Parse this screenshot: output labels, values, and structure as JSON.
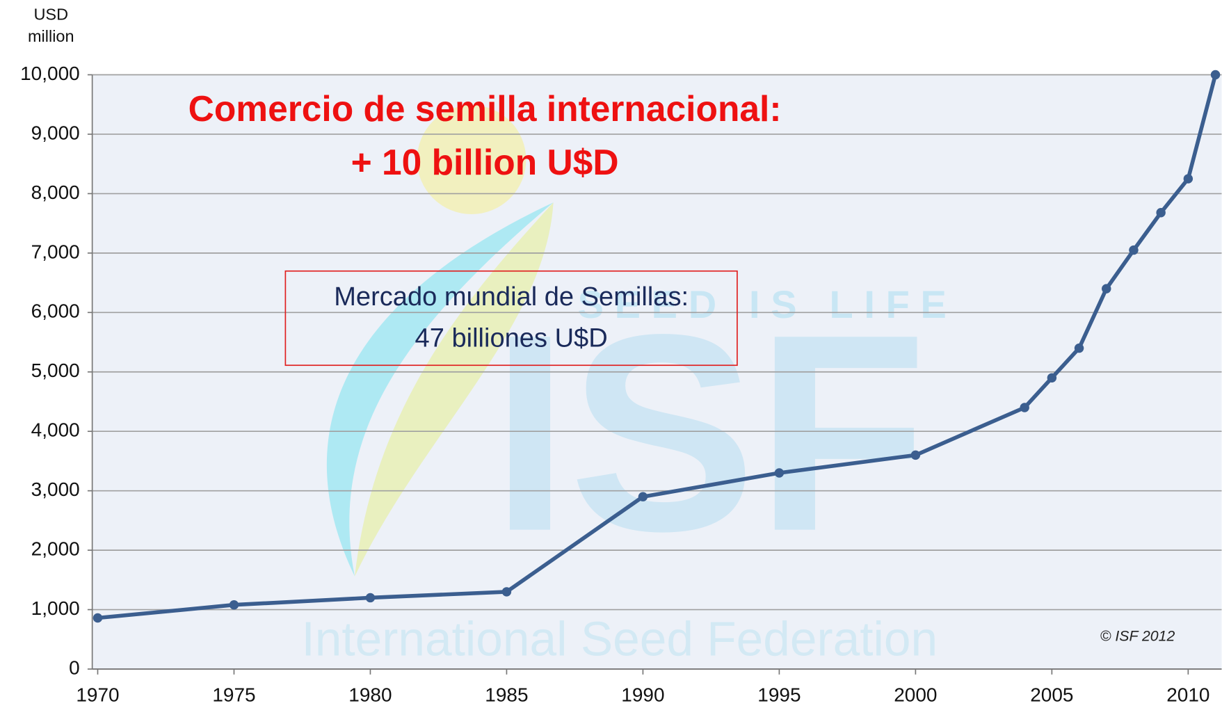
{
  "chart_data": {
    "type": "line",
    "title": "Comercio de semilla internacional:",
    "subtitle": "+ 10 billion U$D",
    "ylabel_lines": [
      "USD",
      "million"
    ],
    "annotation_lines": [
      "Mercado mundial de Semillas:",
      "47 billiones U$D"
    ],
    "credit": "© ISF 2012",
    "watermark": [
      "SEED IS LIFE",
      "ISF",
      "International Seed Federation"
    ],
    "x": [
      1970,
      1975,
      1980,
      1985,
      1990,
      1995,
      2000,
      2004,
      2005,
      2006,
      2007,
      2008,
      2009,
      2010,
      2011
    ],
    "series": [
      {
        "color": "#3b5e8f",
        "values": [
          860,
          1080,
          1200,
          1300,
          2900,
          3300,
          3600,
          4400,
          4900,
          5400,
          6400,
          7050,
          7680,
          8250,
          10000
        ]
      }
    ],
    "xlim": [
      1970,
      2011
    ],
    "xticks": [
      1970,
      1975,
      1980,
      1985,
      1990,
      1995,
      2000,
      2005,
      2010
    ],
    "ylim": [
      0,
      10000
    ],
    "yticks": [
      0,
      {
        "value": 1000,
        "label": "1,000"
      },
      {
        "value": 2000,
        "label": "2,000"
      },
      {
        "value": 3000,
        "label": "3,000"
      },
      {
        "value": 4000,
        "label": "4,000"
      },
      {
        "value": 5000,
        "label": "5,000"
      },
      {
        "value": 6000,
        "label": "6,000"
      },
      {
        "value": 7000,
        "label": "7,000"
      },
      {
        "value": 8000,
        "label": "8,000"
      },
      {
        "value": 9000,
        "label": "9,000"
      },
      {
        "value": 10000,
        "label": "10,000"
      }
    ],
    "grid": true
  }
}
